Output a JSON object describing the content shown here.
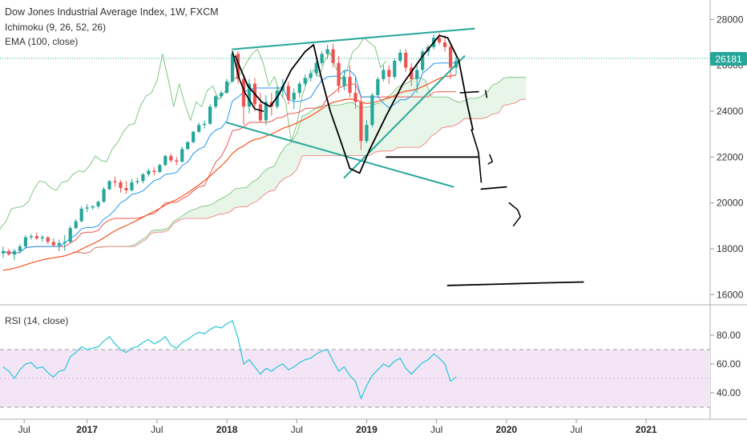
{
  "header": {
    "title": "Dow Jones Industrial Average Index, 1W, FXCM",
    "indicator_ichimoku": "Ichimoku (9, 26, 52, 26)",
    "indicator_ema": "EMA (100, close)",
    "indicator_rsi": "RSI (14, close)"
  },
  "price_badge": {
    "value": "26181",
    "color": "#26a69a"
  },
  "colors": {
    "ichimoku_lagging": "#4caf50",
    "ichimoku_base": "#ef5350",
    "ichimoku_conversion": "#2196f3",
    "cloud_fill": "#e8f5e9",
    "ema": "#f4511e",
    "drawing_teal": "#26a69a",
    "drawing_pen": "#000000",
    "rsi_line": "#26c6da",
    "rsi_band": "#f3e5f5"
  },
  "chart_data": [
    {
      "type": "candlestick",
      "title": "Dow Jones Industrial Average Index, 1W, FXCM",
      "x_ticks": [
        "Jul",
        "2017",
        "Jul",
        "2018",
        "Jul",
        "2019",
        "Jul",
        "2020",
        "Jul",
        "2021"
      ],
      "y_ticks": [
        16000,
        18000,
        20000,
        22000,
        24000,
        26000,
        28000
      ],
      "ylim": [
        15800,
        28500
      ],
      "last_price": 26181,
      "candles": [
        [
          2016.4,
          17800,
          18100,
          17600,
          17900
        ],
        [
          2016.44,
          17900,
          18000,
          17700,
          17750
        ],
        [
          2016.48,
          17750,
          18000,
          17500,
          17900
        ],
        [
          2016.52,
          17900,
          18200,
          17800,
          18100
        ],
        [
          2016.56,
          18100,
          18600,
          18000,
          18500
        ],
        [
          2016.6,
          18500,
          18650,
          18400,
          18550
        ],
        [
          2016.64,
          18550,
          18700,
          18400,
          18450
        ],
        [
          2016.68,
          18450,
          18600,
          18300,
          18500
        ],
        [
          2016.72,
          18500,
          18550,
          18200,
          18300
        ],
        [
          2016.76,
          18300,
          18450,
          18100,
          18150
        ],
        [
          2016.8,
          18150,
          18400,
          17900,
          18250
        ],
        [
          2016.84,
          18250,
          18600,
          17900,
          18300
        ],
        [
          2016.88,
          18300,
          19000,
          18250,
          18900
        ],
        [
          2016.92,
          18900,
          19300,
          18850,
          19200
        ],
        [
          2016.96,
          19200,
          19850,
          19150,
          19750
        ],
        [
          2017.0,
          19750,
          19950,
          19600,
          19800
        ],
        [
          2017.04,
          19800,
          19900,
          19700,
          19850
        ],
        [
          2017.08,
          19850,
          20100,
          19750,
          20050
        ],
        [
          2017.12,
          20050,
          20700,
          20000,
          20600
        ],
        [
          2017.16,
          20600,
          21000,
          20550,
          20950
        ],
        [
          2017.2,
          20950,
          21150,
          20700,
          20900
        ],
        [
          2017.24,
          20900,
          21000,
          20450,
          20650
        ],
        [
          2017.28,
          20650,
          20950,
          20400,
          20550
        ],
        [
          2017.32,
          20550,
          21050,
          20500,
          20900
        ],
        [
          2017.36,
          20900,
          21100,
          20800,
          20950
        ],
        [
          2017.4,
          20950,
          21300,
          20850,
          21250
        ],
        [
          2017.44,
          21250,
          21500,
          21150,
          21400
        ],
        [
          2017.48,
          21400,
          21550,
          21200,
          21350
        ],
        [
          2017.52,
          21350,
          21700,
          21300,
          21650
        ],
        [
          2017.56,
          21650,
          22100,
          21600,
          22050
        ],
        [
          2017.6,
          22050,
          22150,
          21750,
          21850
        ],
        [
          2017.64,
          21850,
          22000,
          21650,
          21800
        ],
        [
          2017.68,
          21800,
          22450,
          21750,
          22350
        ],
        [
          2017.72,
          22350,
          22700,
          22300,
          22650
        ],
        [
          2017.76,
          22650,
          23150,
          22600,
          23100
        ],
        [
          2017.8,
          23100,
          23500,
          23050,
          23400
        ],
        [
          2017.84,
          23400,
          23600,
          23250,
          23450
        ],
        [
          2017.88,
          23450,
          24300,
          23400,
          24200
        ],
        [
          2017.92,
          24200,
          24700,
          24100,
          24650
        ],
        [
          2017.96,
          24650,
          24900,
          24550,
          24800
        ],
        [
          2018.0,
          24800,
          25400,
          24750,
          25300
        ],
        [
          2018.04,
          25300,
          26600,
          25250,
          26500
        ],
        [
          2018.08,
          26500,
          26620,
          25200,
          25400
        ],
        [
          2018.12,
          25400,
          25600,
          23400,
          24200
        ],
        [
          2018.16,
          24200,
          25400,
          23900,
          25200
        ],
        [
          2018.2,
          25200,
          25450,
          24000,
          24300
        ],
        [
          2018.24,
          24300,
          24800,
          23500,
          23600
        ],
        [
          2018.28,
          23600,
          24700,
          23400,
          24400
        ],
        [
          2018.32,
          24400,
          24800,
          23800,
          24200
        ],
        [
          2018.36,
          24200,
          25100,
          24100,
          24900
        ],
        [
          2018.4,
          24900,
          25400,
          24600,
          25100
        ],
        [
          2018.44,
          25100,
          25300,
          24300,
          24500
        ],
        [
          2018.48,
          24500,
          25000,
          24100,
          24800
        ],
        [
          2018.52,
          24800,
          25300,
          24600,
          25200
        ],
        [
          2018.56,
          25200,
          25600,
          25100,
          25450
        ],
        [
          2018.6,
          25450,
          25800,
          25300,
          25650
        ],
        [
          2018.64,
          25650,
          26200,
          25500,
          26100
        ],
        [
          2018.68,
          26100,
          26600,
          26000,
          26500
        ],
        [
          2018.72,
          26500,
          26900,
          26300,
          26700
        ],
        [
          2018.76,
          26700,
          26950,
          25900,
          26100
        ],
        [
          2018.8,
          26100,
          26400,
          24800,
          25100
        ],
        [
          2018.84,
          25100,
          25800,
          24900,
          25500
        ],
        [
          2018.88,
          25500,
          26000,
          24600,
          24800
        ],
        [
          2018.92,
          24800,
          25500,
          24100,
          24400
        ],
        [
          2018.96,
          24400,
          24700,
          22300,
          22700
        ],
        [
          2019.0,
          22700,
          23600,
          22600,
          23400
        ],
        [
          2019.04,
          23400,
          24800,
          23300,
          24700
        ],
        [
          2019.08,
          24700,
          25500,
          24600,
          25400
        ],
        [
          2019.12,
          25400,
          26000,
          25300,
          25800
        ],
        [
          2019.16,
          25800,
          26000,
          25200,
          25500
        ],
        [
          2019.2,
          25500,
          26300,
          25400,
          26200
        ],
        [
          2019.24,
          26200,
          26700,
          26100,
          26550
        ],
        [
          2019.28,
          26550,
          26700,
          25700,
          25900
        ],
        [
          2019.32,
          25900,
          26100,
          25100,
          25400
        ],
        [
          2019.36,
          25400,
          26000,
          24800,
          25800
        ],
        [
          2019.4,
          25800,
          26700,
          25700,
          26600
        ],
        [
          2019.44,
          26600,
          26900,
          26400,
          26800
        ],
        [
          2019.48,
          26800,
          27350,
          26700,
          27200
        ],
        [
          2019.52,
          27200,
          27400,
          26900,
          27000
        ],
        [
          2019.56,
          27000,
          27300,
          26600,
          26800
        ],
        [
          2019.6,
          26800,
          26900,
          25400,
          25900
        ],
        [
          2019.64,
          25900,
          26500,
          25600,
          26200
        ]
      ]
    },
    {
      "type": "line",
      "title": "RSI (14, close)",
      "y_ticks": [
        40,
        60,
        80
      ],
      "ylim": [
        25,
        95
      ],
      "band": [
        30,
        70
      ],
      "x": [
        2016.4,
        2016.44,
        2016.48,
        2016.52,
        2016.56,
        2016.6,
        2016.64,
        2016.68,
        2016.72,
        2016.76,
        2016.8,
        2016.84,
        2016.88,
        2016.92,
        2016.96,
        2017.0,
        2017.04,
        2017.08,
        2017.12,
        2017.16,
        2017.2,
        2017.24,
        2017.28,
        2017.32,
        2017.36,
        2017.4,
        2017.44,
        2017.48,
        2017.52,
        2017.56,
        2017.6,
        2017.64,
        2017.68,
        2017.72,
        2017.76,
        2017.8,
        2017.84,
        2017.88,
        2017.92,
        2017.96,
        2018.0,
        2018.04,
        2018.08,
        2018.12,
        2018.16,
        2018.2,
        2018.24,
        2018.28,
        2018.32,
        2018.36,
        2018.4,
        2018.44,
        2018.48,
        2018.52,
        2018.56,
        2018.6,
        2018.64,
        2018.68,
        2018.72,
        2018.76,
        2018.8,
        2018.84,
        2018.88,
        2018.92,
        2018.96,
        2019.0,
        2019.04,
        2019.08,
        2019.12,
        2019.16,
        2019.2,
        2019.24,
        2019.28,
        2019.32,
        2019.36,
        2019.4,
        2019.44,
        2019.48,
        2019.52,
        2019.56,
        2019.6,
        2019.64
      ],
      "values": [
        58,
        55,
        50,
        56,
        60,
        61,
        57,
        58,
        54,
        51,
        55,
        56,
        65,
        68,
        72,
        70,
        71,
        72,
        76,
        79,
        74,
        70,
        68,
        71,
        72,
        75,
        77,
        74,
        76,
        79,
        73,
        71,
        75,
        77,
        80,
        82,
        81,
        84,
        86,
        85,
        88,
        90,
        78,
        60,
        63,
        58,
        53,
        57,
        55,
        58,
        60,
        56,
        58,
        61,
        63,
        64,
        67,
        69,
        70,
        62,
        55,
        58,
        52,
        48,
        36,
        45,
        52,
        56,
        60,
        58,
        62,
        64,
        57,
        53,
        57,
        61,
        63,
        67,
        64,
        60,
        48,
        51
      ]
    }
  ]
}
